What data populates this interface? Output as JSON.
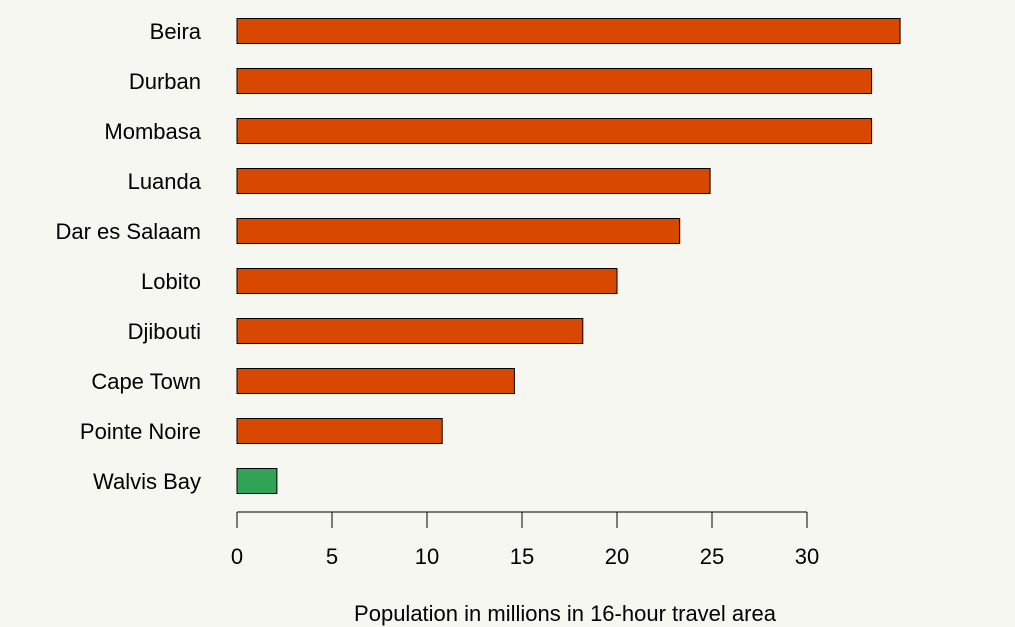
{
  "chart_data": {
    "type": "bar",
    "orientation": "horizontal",
    "categories": [
      "Beira",
      "Durban",
      "Mombasa",
      "Luanda",
      "Dar es Salaam",
      "Lobito",
      "Djibouti",
      "Cape Town",
      "Pointe Noire",
      "Walvis Bay"
    ],
    "values": [
      34.9,
      33.4,
      33.4,
      24.9,
      23.3,
      20.0,
      18.2,
      14.6,
      10.8,
      2.1
    ],
    "bar_colors": [
      "#d94801",
      "#d94801",
      "#d94801",
      "#d94801",
      "#d94801",
      "#d94801",
      "#d94801",
      "#d94801",
      "#d94801",
      "#31a354"
    ],
    "xticks": [
      0,
      5,
      10,
      15,
      20,
      25,
      30
    ],
    "xlim": [
      0,
      35
    ],
    "xlabel": "Population in millions in 16-hour travel area",
    "ylabel": "",
    "title": "",
    "grid": false,
    "legend": "none"
  },
  "colors": {
    "background": "#f7f7f2",
    "bar_default": "#d94801",
    "bar_highlight": "#31a354"
  }
}
